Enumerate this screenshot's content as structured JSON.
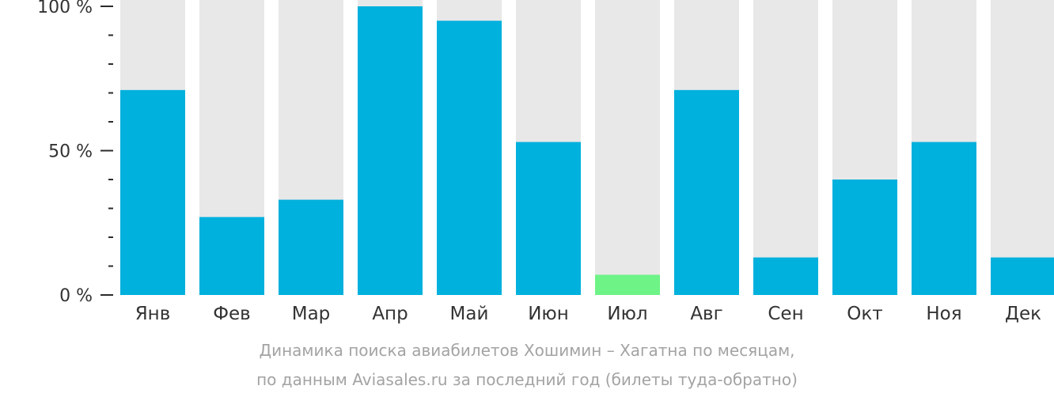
{
  "chart_data": {
    "type": "bar",
    "categories": [
      "Янв",
      "Фев",
      "Мар",
      "Апр",
      "Май",
      "Июн",
      "Июл",
      "Авг",
      "Сен",
      "Окт",
      "Ноя",
      "Дек"
    ],
    "values": [
      71,
      27,
      33,
      100,
      95,
      53,
      7,
      71,
      13,
      40,
      53,
      13
    ],
    "highlight_index": 6,
    "ylim": [
      0,
      100
    ],
    "yticks": [
      {
        "value": 0,
        "label": "0 %"
      },
      {
        "value": 50,
        "label": "50 %"
      },
      {
        "value": 100,
        "label": "100 %"
      }
    ],
    "minor_tick_step": 10,
    "colors": {
      "bar": "#00b0dd",
      "highlight": "#6ef387",
      "background_bar": "#e8e8e8",
      "axis": "#2b2b2b",
      "tick_label": "#333333"
    }
  },
  "caption": {
    "line1": "Динамика поиска авиабилетов Хошимин – Хагатна по месяцам,",
    "line2": "по данным Aviasales.ru за последний год (билеты туда-обратно)"
  }
}
